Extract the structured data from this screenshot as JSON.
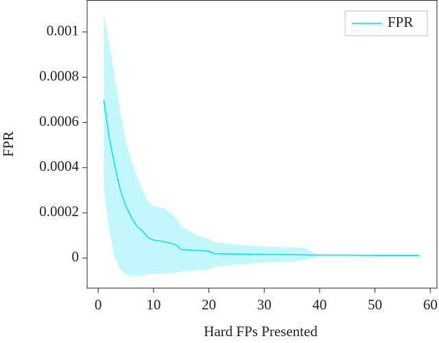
{
  "chart_data": {
    "type": "line",
    "xlabel": "Hard FPs Presented",
    "ylabel": "FPR",
    "x": [
      1,
      2,
      3,
      4,
      5,
      6,
      7,
      8,
      9,
      10,
      12,
      14,
      15,
      18,
      20,
      21,
      25,
      30,
      35,
      37,
      40,
      45,
      50,
      58
    ],
    "series": [
      {
        "name": "FPR",
        "color": "#00e1ee",
        "values": [
          0.0007,
          0.00053,
          0.00041,
          0.0003,
          0.00023,
          0.00018,
          0.00014,
          0.00012,
          9e-05,
          8e-05,
          7.2e-05,
          6e-05,
          3.8e-05,
          3.4e-05,
          3e-05,
          2e-05,
          1.8e-05,
          1.6e-05,
          1.5e-05,
          1.4e-05,
          1.3e-05,
          1.3e-05,
          1.2e-05,
          1.2e-05
        ]
      }
    ],
    "band": {
      "color": "#c2f8fb",
      "upper": [
        0.00108,
        0.00095,
        0.0008,
        0.00065,
        0.00052,
        0.00043,
        0.00036,
        0.0003,
        0.00025,
        0.00023,
        0.00022,
        0.00018,
        0.00014,
        0.0001,
        8.5e-05,
        7e-05,
        6e-05,
        5e-05,
        4.7e-05,
        4.5e-05,
        1.5e-05,
        1.4e-05,
        1.3e-05,
        1.2e-05
      ],
      "lower": [
        0.0003,
        0.00012,
        0,
        -5e-05,
        -7e-05,
        -8e-05,
        -8e-05,
        -8e-05,
        -7e-05,
        -7e-05,
        -6.8e-05,
        -6.5e-05,
        -6e-05,
        -5.5e-05,
        -5e-05,
        -4e-05,
        -3e-05,
        -2e-05,
        -1.5e-05,
        -1e-05,
        1.1e-05,
        1.2e-05,
        1.1e-05,
        1.2e-05
      ]
    },
    "xlim": [
      -2,
      61.2
    ],
    "xticks": [
      0,
      10,
      20,
      30,
      40,
      50,
      60
    ],
    "ylim": [
      -0.000133,
      0.00114
    ],
    "yticks": [
      0,
      0.0002,
      0.0004,
      0.0006,
      0.0008,
      0.001
    ],
    "legend": "top-right"
  }
}
